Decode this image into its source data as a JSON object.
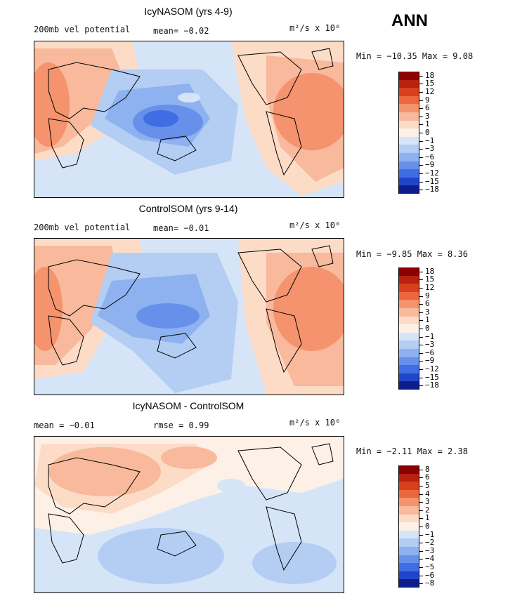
{
  "season": "ANN",
  "panels": [
    {
      "title": "IcyNASOM (yrs 4-9)",
      "left_label": "200mb vel potential",
      "mid_label": "mean=  −0.02",
      "units": "m²/s x 10⁶",
      "minmax": "Min = −10.35 Max =   9.08",
      "levels": [
        "18",
        "15",
        "12",
        "9",
        "6",
        "3",
        "1",
        "0",
        "−1",
        "−3",
        "−6",
        "−9",
        "−12",
        "−15",
        "−18"
      ],
      "colors": [
        "#8b0000",
        "#b8220e",
        "#d8401d",
        "#ec6740",
        "#f4936d",
        "#f8b99c",
        "#fcdcc7",
        "#fdf0e6",
        "#d5e5f7",
        "#b4cdf3",
        "#8eb2ef",
        "#6690ea",
        "#3f6de3",
        "#2145c8",
        "#0d1e8c"
      ]
    },
    {
      "title": "ControlSOM (yrs 9-14)",
      "left_label": "200mb vel potential",
      "mid_label": "mean=  −0.01",
      "units": "m²/s x 10⁶",
      "minmax": "Min =  −9.85 Max =   8.36",
      "levels": [
        "18",
        "15",
        "12",
        "9",
        "6",
        "3",
        "1",
        "0",
        "−1",
        "−3",
        "−6",
        "−9",
        "−12",
        "−15",
        "−18"
      ],
      "colors": [
        "#8b0000",
        "#b8220e",
        "#d8401d",
        "#ec6740",
        "#f4936d",
        "#f8b99c",
        "#fcdcc7",
        "#fdf0e6",
        "#d5e5f7",
        "#b4cdf3",
        "#8eb2ef",
        "#6690ea",
        "#3f6de3",
        "#2145c8",
        "#0d1e8c"
      ]
    },
    {
      "title": "IcyNASOM - ControlSOM",
      "left_label": "mean =   −0.01",
      "mid_label": "rmse =    0.99",
      "units": "m²/s x 10⁶",
      "minmax": "Min =  −2.11 Max =   2.38",
      "levels": [
        "8",
        "6",
        "5",
        "4",
        "3",
        "2",
        "1",
        "0",
        "−1",
        "−2",
        "−3",
        "−4",
        "−5",
        "−6",
        "−8"
      ],
      "colors": [
        "#8b0000",
        "#b8220e",
        "#d8401d",
        "#ec6740",
        "#f4936d",
        "#f8b99c",
        "#fcdcc7",
        "#fdf0e6",
        "#d5e5f7",
        "#b4cdf3",
        "#8eb2ef",
        "#6690ea",
        "#3f6de3",
        "#2145c8",
        "#0d1e8c"
      ]
    }
  ]
}
